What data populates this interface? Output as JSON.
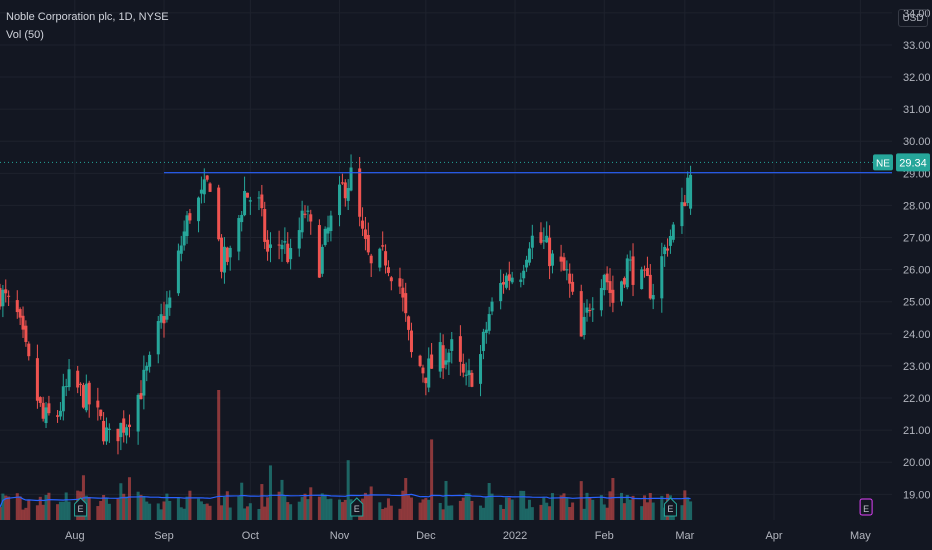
{
  "legend": {
    "symbol_line": "Noble Corporation plc, 1D, NYSE",
    "indicator_line": "Vol (50)"
  },
  "currency": "USD",
  "colors": {
    "background": "#131722",
    "grid": "#1e222d",
    "up": "#26a69a",
    "down": "#ef5350",
    "trendline": "#2962ff",
    "price_label_bg": "#26a69a",
    "volume_ma": "#2962ff",
    "dividend_marker": "#e040fb",
    "earnings_marker": "#26a69a"
  },
  "chart_data": {
    "type": "candlestick",
    "title": "Noble Corporation plc, 1D, NYSE",
    "ylabel": "USD",
    "yticks": [
      19,
      20,
      21,
      22,
      23,
      24,
      25,
      26,
      27,
      28,
      29,
      30,
      31,
      32,
      33,
      34
    ],
    "ytick_labels": [
      "19.00",
      "20.00",
      "21.00",
      "22.00",
      "23.00",
      "24.00",
      "25.00",
      "26.00",
      "27.00",
      "28.00",
      "29.00",
      "30.00",
      "31.00",
      "32.00",
      "33.00",
      "34.00"
    ],
    "ylim": [
      18.2,
      34.4
    ],
    "xlim": [
      "2021-07-06",
      "2022-05-12"
    ],
    "xticks": [
      {
        "date": "2021-08-01",
        "label": "Aug"
      },
      {
        "date": "2021-09-01",
        "label": "Sep"
      },
      {
        "date": "2021-10-01",
        "label": "Oct"
      },
      {
        "date": "2021-11-01",
        "label": "Nov"
      },
      {
        "date": "2021-12-01",
        "label": "Dec"
      },
      {
        "date": "2022-01-01",
        "label": "2022"
      },
      {
        "date": "2022-02-01",
        "label": "Feb"
      },
      {
        "date": "2022-03-01",
        "label": "Mar"
      },
      {
        "date": "2022-04-01",
        "label": "Apr"
      },
      {
        "date": "2022-05-01",
        "label": "May"
      }
    ],
    "last_price": {
      "ticker": "NE",
      "value": 29.34,
      "label": "29.34"
    },
    "trendline": {
      "start_date": "2021-09-01",
      "end_date": "2022-05-12",
      "value": 29.02
    },
    "close_path": [
      [
        "2021-07-06",
        25.3
      ],
      [
        "2021-07-12",
        24.5
      ],
      [
        "2021-07-16",
        23.0
      ],
      [
        "2021-07-21",
        21.3
      ],
      [
        "2021-07-26",
        21.5
      ],
      [
        "2021-07-30",
        22.5
      ],
      [
        "2021-08-05",
        22.0
      ],
      [
        "2021-08-10",
        21.2
      ],
      [
        "2021-08-13",
        20.7
      ],
      [
        "2021-08-19",
        21.3
      ],
      [
        "2021-08-24",
        22.3
      ],
      [
        "2021-08-27",
        23.0
      ],
      [
        "2021-08-31",
        24.4
      ],
      [
        "2021-09-03",
        25.0
      ],
      [
        "2021-09-07",
        26.8
      ],
      [
        "2021-09-10",
        27.8
      ],
      [
        "2021-09-14",
        28.2
      ],
      [
        "2021-09-17",
        28.8
      ],
      [
        "2021-09-21",
        26.2
      ],
      [
        "2021-09-24",
        26.4
      ],
      [
        "2021-09-29",
        28.4
      ],
      [
        "2021-10-04",
        28.0
      ],
      [
        "2021-10-07",
        26.5
      ],
      [
        "2021-10-12",
        26.9
      ],
      [
        "2021-10-15",
        26.3
      ],
      [
        "2021-10-20",
        27.8
      ],
      [
        "2021-10-25",
        26.2
      ],
      [
        "2021-10-28",
        27.2
      ],
      [
        "2021-11-02",
        28.5
      ],
      [
        "2021-11-05",
        28.9
      ],
      [
        "2021-11-09",
        27.0
      ],
      [
        "2021-11-12",
        26.0
      ],
      [
        "2021-11-17",
        26.4
      ],
      [
        "2021-11-22",
        25.5
      ],
      [
        "2021-11-26",
        23.3
      ],
      [
        "2021-12-01",
        22.8
      ],
      [
        "2021-12-06",
        23.3
      ],
      [
        "2021-12-10",
        23.5
      ],
      [
        "2021-12-15",
        22.4
      ],
      [
        "2021-12-20",
        23.3
      ],
      [
        "2021-12-23",
        24.6
      ],
      [
        "2021-12-28",
        25.7
      ],
      [
        "2022-01-03",
        26.0
      ],
      [
        "2022-01-06",
        27.0
      ],
      [
        "2022-01-11",
        26.8
      ],
      [
        "2022-01-14",
        26.3
      ],
      [
        "2022-01-19",
        25.8
      ],
      [
        "2022-01-24",
        23.8
      ],
      [
        "2022-01-27",
        25.0
      ],
      [
        "2022-02-01",
        26.0
      ],
      [
        "2022-02-04",
        25.0
      ],
      [
        "2022-02-09",
        26.2
      ],
      [
        "2022-02-14",
        25.6
      ],
      [
        "2022-02-18",
        25.4
      ],
      [
        "2022-02-23",
        26.9
      ],
      [
        "2022-02-28",
        27.8
      ],
      [
        "2022-03-03",
        29.34
      ]
    ],
    "volume": {
      "ma_length": 50,
      "relative_bar_height_max": 1.0,
      "spikes": [
        {
          "date": "2021-09-20",
          "relative": 1.0
        },
        {
          "date": "2021-12-03",
          "relative": 0.62
        },
        {
          "date": "2021-11-04",
          "relative": 0.46
        },
        {
          "date": "2021-10-08",
          "relative": 0.42
        }
      ]
    },
    "events": [
      {
        "type": "earnings",
        "date": "2021-08-03",
        "label": "E"
      },
      {
        "type": "earnings",
        "date": "2021-11-07",
        "label": "E"
      },
      {
        "type": "earnings",
        "date": "2022-02-24",
        "label": "E"
      },
      {
        "type": "dividend_upcoming",
        "date": "2022-05-03",
        "label": "E"
      }
    ]
  }
}
